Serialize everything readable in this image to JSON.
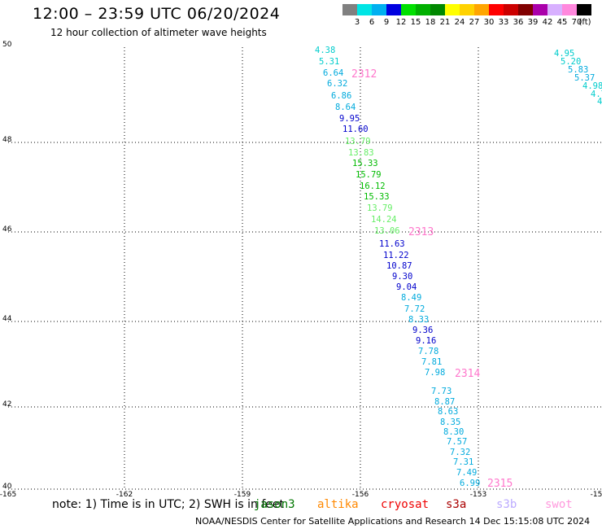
{
  "header": {
    "title": "12:00 – 23:59 UTC 06/20/2024",
    "subtitle": "12 hour collection of altimeter wave heights"
  },
  "color_scale": {
    "colors": [
      "#808080",
      "#00e5e5",
      "#00b0f0",
      "#0000e0",
      "#00e000",
      "#00b000",
      "#008800",
      "#ffff00",
      "#ffd200",
      "#ffa500",
      "#ff0000",
      "#cc0000",
      "#800000",
      "#aa00aa",
      "#d8b0ff",
      "#ff88dd",
      "#000000"
    ],
    "labels": [
      "3",
      "6",
      "9",
      "12",
      "15",
      "18",
      "21",
      "24",
      "27",
      "30",
      "33",
      "36",
      "39",
      "42",
      "45",
      "70",
      "(ft)"
    ]
  },
  "map": {
    "lat_labels": [
      "50",
      "48",
      "46",
      "44",
      "42",
      "40"
    ],
    "lon_labels": [
      "-165",
      "-162",
      "-159",
      "-156",
      "-153",
      "-15"
    ],
    "main_track": [
      {
        "value": "4.38",
        "color": "#00cccc"
      },
      {
        "value": "5.31",
        "color": "#00cccc"
      },
      {
        "value": "6.64",
        "color": "#00aadd"
      },
      {
        "value": "6.32",
        "color": "#00aadd"
      },
      {
        "value": "6.86",
        "color": "#00aadd"
      },
      {
        "value": "8.64",
        "color": "#00aadd"
      },
      {
        "value": "9.95",
        "color": "#0000cc"
      },
      {
        "value": "11.60",
        "color": "#0000cc"
      },
      {
        "value": "13.79",
        "color": "#66ee66"
      },
      {
        "value": "13.83",
        "color": "#66ee66"
      },
      {
        "value": "15.33",
        "color": "#00bb00"
      },
      {
        "value": "15.79",
        "color": "#00bb00"
      },
      {
        "value": "16.12",
        "color": "#00bb00"
      },
      {
        "value": "15.33",
        "color": "#00bb00"
      },
      {
        "value": "13.79",
        "color": "#66ee66"
      },
      {
        "value": "14.24",
        "color": "#66ee66"
      },
      {
        "value": "13.06",
        "color": "#66ee66"
      },
      {
        "value": "11.63",
        "color": "#0000cc"
      },
      {
        "value": "11.22",
        "color": "#0000cc"
      },
      {
        "value": "10.87",
        "color": "#0000cc"
      },
      {
        "value": "9.30",
        "color": "#0000cc"
      },
      {
        "value": "9.04",
        "color": "#0000cc"
      },
      {
        "value": "8.49",
        "color": "#00aadd"
      },
      {
        "value": "7.72",
        "color": "#00aadd"
      },
      {
        "value": "8.33",
        "color": "#00aadd"
      },
      {
        "value": "9.36",
        "color": "#0000cc"
      },
      {
        "value": "9.16",
        "color": "#0000cc"
      },
      {
        "value": "7.78",
        "color": "#00aadd"
      },
      {
        "value": "7.81",
        "color": "#00aadd"
      },
      {
        "value": "7.98",
        "color": "#00aadd"
      },
      {
        "value": "7.73",
        "color": "#00aadd"
      },
      {
        "value": "8.87",
        "color": "#00aadd"
      },
      {
        "value": "8.63",
        "color": "#00aadd"
      },
      {
        "value": "8.35",
        "color": "#00aadd"
      },
      {
        "value": "8.30",
        "color": "#00aadd"
      },
      {
        "value": "7.57",
        "color": "#00aadd"
      },
      {
        "value": "7.32",
        "color": "#00aadd"
      },
      {
        "value": "7.31",
        "color": "#00aadd"
      },
      {
        "value": "7.49",
        "color": "#00aadd"
      },
      {
        "value": "6.99",
        "color": "#00aadd"
      }
    ],
    "right_track": [
      {
        "value": "4.95",
        "color": "#00cccc"
      },
      {
        "value": "5.20",
        "color": "#00cccc"
      },
      {
        "value": "5.83",
        "color": "#00aadd"
      },
      {
        "value": "5.37",
        "color": "#00aadd"
      },
      {
        "value": "4.98",
        "color": "#00cccc"
      },
      {
        "value": "4.7",
        "color": "#00cccc"
      },
      {
        "value": "4",
        "color": "#00cccc"
      }
    ],
    "pass_times": [
      "2312",
      "2313",
      "2314",
      "2315"
    ]
  },
  "note": {
    "text": "note: 1) Time is in UTC; 2) SWH is in feet",
    "satellites": [
      {
        "name": "jason3",
        "color": "#007700"
      },
      {
        "name": "altika",
        "color": "#ff8800"
      },
      {
        "name": "cryosat",
        "color": "#ee0000"
      },
      {
        "name": "s3a",
        "color": "#aa0000"
      },
      {
        "name": "s3b",
        "color": "#bbaaff"
      },
      {
        "name": "swot",
        "color": "#ff99dd"
      }
    ]
  },
  "footer": {
    "text": "NOAA/NESDIS Center for Satellite Applications and Research    14 Dec 15:15:08 UTC 2024"
  }
}
